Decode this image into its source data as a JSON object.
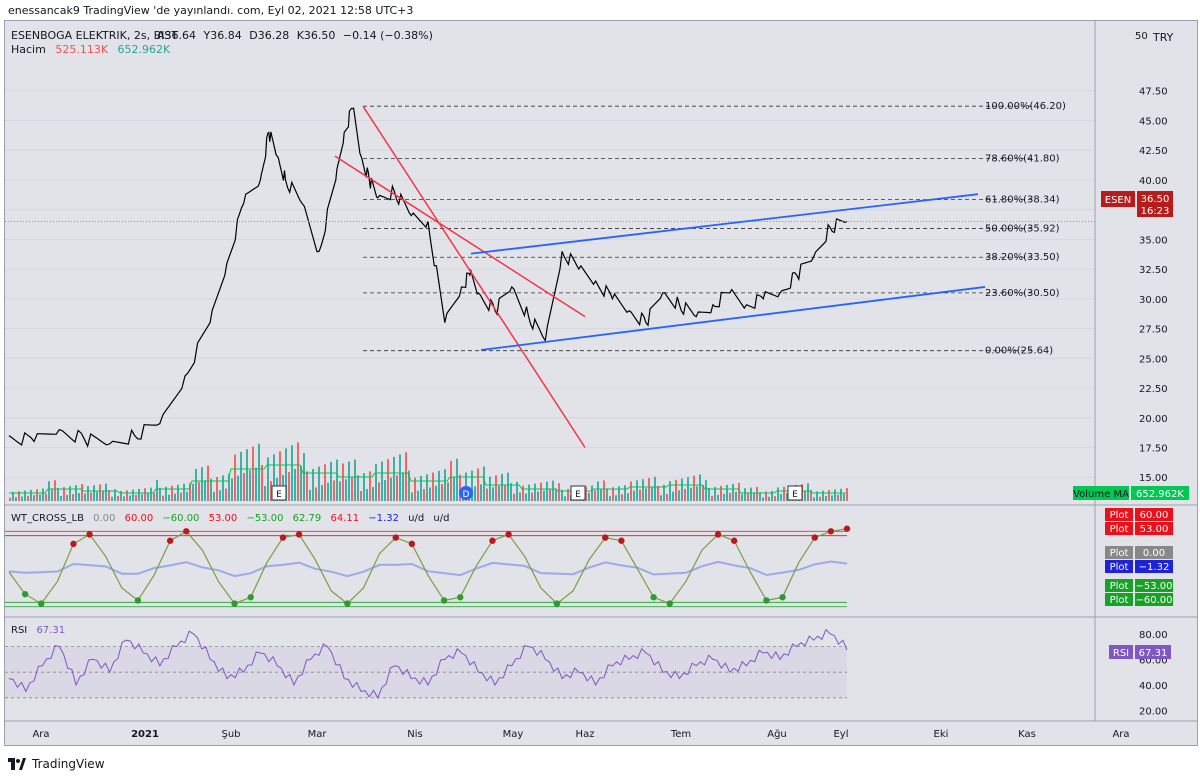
{
  "header": {
    "publish_line": "enessancak9 TradingView 'de yayınlandı. com, Eyl 02, 2021 12:58 UTC+3"
  },
  "legend": {
    "symbol": "ESENBOGA ELEKTRIK, 2s, BIST",
    "ohlc": {
      "open": "A36.64",
      "high": "Y36.84",
      "low": "D36.28",
      "close": "K36.50",
      "change": "−0.14 (−0.38%)"
    },
    "volume_label": "Hacim",
    "volume_value": "525.113K",
    "volume_ma_value": "652.962K"
  },
  "colors": {
    "up": "#26a69a",
    "down": "#ef5350",
    "price_line": "#000000",
    "red_channel": "#f23645",
    "blue_channel": "#2962ff",
    "volume_ma": "#00c853",
    "rsi": "#7e57c2",
    "wt_line": "#7e9c3e"
  },
  "price_axis": {
    "unit_label": "TRY",
    "corner_label": "50",
    "ticks": [
      "47.50",
      "45.00",
      "42.50",
      "40.00",
      "37.50",
      "35.00",
      "32.50",
      "30.00",
      "27.50",
      "25.00",
      "22.50",
      "20.00",
      "17.50",
      "15.00"
    ],
    "last_price_symbol": "ESEN",
    "last_price": "36.50",
    "countdown": "16:23"
  },
  "fibonacci": [
    {
      "label": "100.00%(46.20)",
      "price": 46.2
    },
    {
      "label": "78.60%(41.80)",
      "price": 41.8
    },
    {
      "label": "61.80%(38.34)",
      "price": 38.34
    },
    {
      "label": "50.00%(35.92)",
      "price": 35.92
    },
    {
      "label": "38.20%(33.50)",
      "price": 33.5
    },
    {
      "label": "23.60%(30.50)",
      "price": 30.5
    },
    {
      "label": "0.00%(25.64)",
      "price": 25.64
    }
  ],
  "time_axis": {
    "labels": [
      "Ara",
      "2021",
      "Şub",
      "Mar",
      "Nis",
      "May",
      "Haz",
      "Tem",
      "Ağu",
      "Eyl",
      "Eki",
      "Kas",
      "Ara"
    ]
  },
  "volume_pane": {
    "ma_tag_label": "Volume MA",
    "ma_tag_value": "652.962K",
    "event_markers": [
      "E",
      "D",
      "E",
      "E"
    ]
  },
  "wt_pane": {
    "title": "WT_CROSS_LB",
    "values": [
      "0.00",
      "60.00",
      "−60.00",
      "53.00",
      "−53.00",
      "62.79",
      "64.11",
      "−1.32",
      "u/d",
      "u/d"
    ],
    "tags": [
      {
        "label": "Plot",
        "value": "60.00",
        "color": "#e8121c"
      },
      {
        "label": "Plot",
        "value": "53.00",
        "color": "#e8121c"
      },
      {
        "label": "Plot",
        "value": "0.00",
        "color": "#888888"
      },
      {
        "label": "Plot",
        "value": "−1.32",
        "color": "#1e22d8"
      },
      {
        "label": "Plot",
        "value": "−53.00",
        "color": "#17a126"
      },
      {
        "label": "Plot",
        "value": "−60.00",
        "color": "#17a126"
      }
    ]
  },
  "rsi_pane": {
    "title": "RSI",
    "value": "67.31",
    "tag_label": "RSI",
    "ticks": [
      "80.00",
      "60.00",
      "40.00",
      "20.00"
    ]
  },
  "footer": {
    "brand": "TradingView"
  },
  "chart_data": [
    {
      "type": "line",
      "title": "ESENBOGA ELEKTRIK, 2s, BIST",
      "x_labels": [
        "Ara",
        "2021",
        "Şub",
        "Mar",
        "Nis",
        "May",
        "Haz",
        "Tem",
        "Ağu",
        "Eyl"
      ],
      "ylim": [
        13,
        50
      ],
      "series": [
        {
          "name": "Close",
          "x": [
            0,
            0.03,
            0.06,
            0.09,
            0.12,
            0.15,
            0.18,
            0.21,
            0.24,
            0.26,
            0.28,
            0.3,
            0.31,
            0.32,
            0.33,
            0.35,
            0.37,
            0.39,
            0.4,
            0.41,
            0.42,
            0.43,
            0.44,
            0.46,
            0.48,
            0.5,
            0.52,
            0.54,
            0.55,
            0.56,
            0.58,
            0.6,
            0.62,
            0.64,
            0.66,
            0.68,
            0.7,
            0.72,
            0.74,
            0.76,
            0.78,
            0.8,
            0.82,
            0.84,
            0.86,
            0.88,
            0.9,
            0.92,
            0.94,
            0.96,
            0.98,
            1.0
          ],
          "y": [
            18.5,
            18.0,
            19.0,
            18.2,
            17.8,
            18.5,
            19.5,
            23.5,
            28.0,
            33.0,
            38.0,
            40.0,
            44.0,
            42.0,
            40.0,
            38.0,
            34.0,
            40.0,
            44.0,
            46.0,
            42.0,
            40.0,
            38.5,
            39.0,
            37.0,
            36.5,
            28.0,
            31.0,
            32.0,
            30.5,
            29.0,
            31.0,
            28.5,
            26.5,
            34.0,
            32.5,
            31.5,
            30.0,
            29.0,
            28.0,
            30.5,
            29.5,
            28.5,
            29.5,
            30.5,
            29.5,
            30.0,
            30.5,
            32.0,
            33.5,
            36.0,
            36.5
          ]
        }
      ]
    },
    {
      "type": "bar",
      "title": "Hacim",
      "series": [
        {
          "name": "Volume MA",
          "values": [
            0.2,
            0.3,
            0.25,
            0.2,
            0.3,
            0.5,
            0.8,
            0.9,
            0.7,
            0.6,
            0.7,
            0.5,
            0.6,
            0.4,
            0.3,
            0.25,
            0.3,
            0.35,
            0.4,
            0.3,
            0.2,
            0.25,
            0.2
          ]
        }
      ]
    },
    {
      "type": "line",
      "title": "WT_CROSS_LB",
      "ylim": [
        -70,
        70
      ],
      "series": [
        {
          "name": "WT1",
          "values": [
            -5,
            -40,
            -55,
            -20,
            40,
            55,
            20,
            -30,
            -50,
            -10,
            45,
            60,
            30,
            -20,
            -55,
            -45,
            10,
            50,
            55,
            15,
            -35,
            -55,
            -30,
            25,
            50,
            40,
            -10,
            -50,
            -45,
            5,
            45,
            55,
            20,
            -30,
            -55,
            -35,
            15,
            50,
            45,
            0,
            -45,
            -55,
            -20,
            30,
            55,
            45,
            -5,
            -50,
            -45,
            10,
            50,
            60,
            64.11
          ]
        }
      ]
    },
    {
      "type": "line",
      "title": "RSI",
      "ylim": [
        15,
        90
      ],
      "series": [
        {
          "name": "RSI",
          "values": [
            45,
            35,
            55,
            70,
            40,
            60,
            50,
            75,
            65,
            55,
            70,
            80,
            60,
            45,
            50,
            65,
            55,
            40,
            60,
            70,
            45,
            35,
            30,
            55,
            45,
            40,
            60,
            65,
            50,
            40,
            55,
            70,
            60,
            45,
            50,
            40,
            55,
            60,
            65,
            50,
            45,
            55,
            60,
            50,
            55,
            65,
            60,
            70,
            75,
            80,
            67.31
          ]
        }
      ]
    }
  ]
}
